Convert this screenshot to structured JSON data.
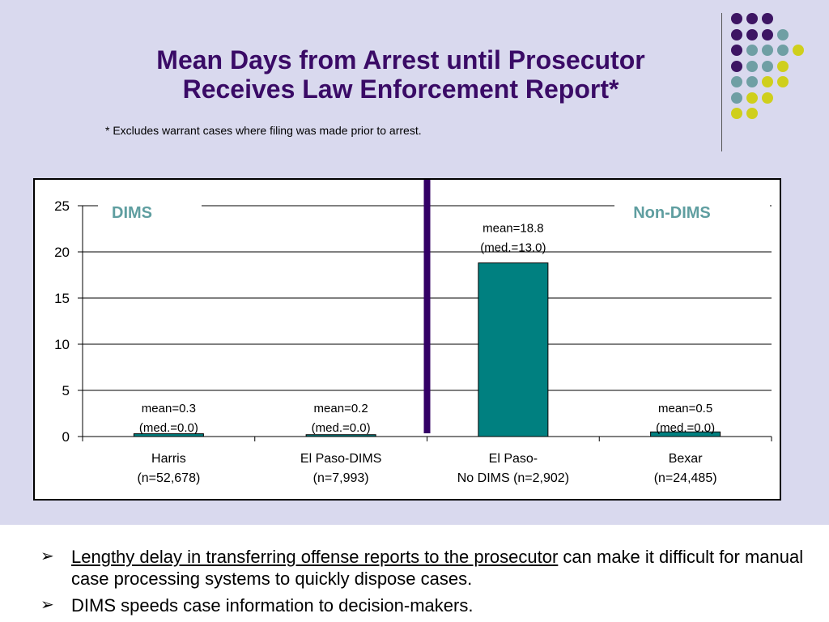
{
  "slide": {
    "title_line1": "Mean Days from Arrest until Prosecutor",
    "title_line2": "Receives Law Enforcement Report*",
    "footnote": "*  Excludes warrant cases where filing was made prior to arrest.",
    "colors": {
      "title": "#3a0b66",
      "band": "#d9d9ee",
      "purple": "#3d1563",
      "teal_gray": "#6f9fa4",
      "olive": "#cfcf1c"
    }
  },
  "decoration": {
    "dot_rows": [
      [
        "purple",
        "purple",
        "purple"
      ],
      [
        "purple",
        "purple",
        "purple",
        "teal_gray"
      ],
      [
        "purple",
        "teal_gray",
        "teal_gray",
        "teal_gray",
        "olive"
      ],
      [
        "purple",
        "teal_gray",
        "teal_gray",
        "olive"
      ],
      [
        "teal_gray",
        "teal_gray",
        "olive",
        "olive"
      ],
      [
        "teal_gray",
        "olive",
        "olive"
      ],
      [
        "olive",
        "olive"
      ]
    ]
  },
  "chart_data": {
    "type": "bar",
    "categories": [
      [
        "Harris",
        "(n=52,678)"
      ],
      [
        "El Paso-DIMS",
        "(n=7,993)"
      ],
      [
        "El Paso-",
        "No DIMS (n=2,902)"
      ],
      [
        "Bexar",
        "(n=24,485)"
      ]
    ],
    "values": [
      0.3,
      0.2,
      18.8,
      0.5
    ],
    "data_labels": [
      [
        "mean=0.3",
        "(med.=0.0)"
      ],
      [
        "mean=0.2",
        "(med.=0.0)"
      ],
      [
        "mean=18.8",
        "(med.=13.0)"
      ],
      [
        "mean=0.5",
        "(med.=0.0)"
      ]
    ],
    "group_labels": {
      "left": "DIMS",
      "right": "Non-DIMS"
    },
    "ylim": [
      0,
      25
    ],
    "yticks": [
      0,
      5,
      10,
      15,
      20,
      25
    ],
    "grid": true,
    "bar_color": "#008080",
    "divider_color": "#330066",
    "group_label_color": "#5f9ea0"
  },
  "bullets": [
    {
      "underlined": "Lengthy delay in transferring offense reports to the prosecutor",
      "rest": " can make it difficult for manual case processing systems to quickly dispose cases."
    },
    {
      "underlined": "",
      "rest": "DIMS speeds case information to decision-makers."
    }
  ]
}
